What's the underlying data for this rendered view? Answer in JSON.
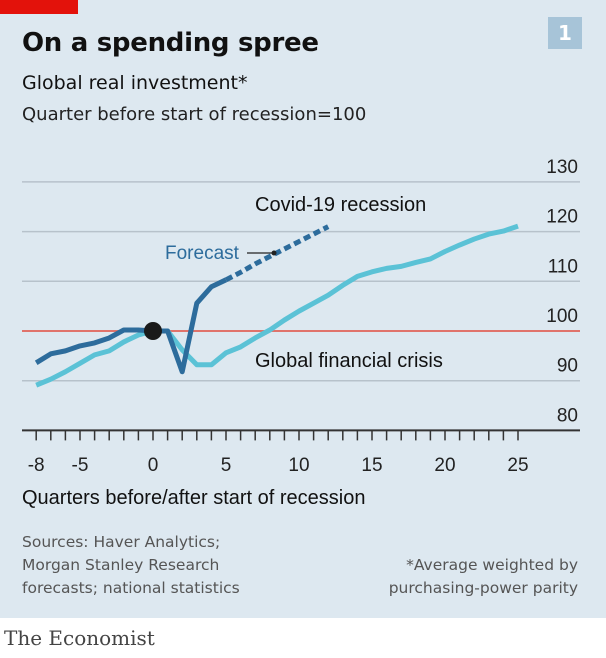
{
  "header": {
    "title": "On a spending spree",
    "subtitle": "Global real investment*",
    "subtitle2": "Quarter before start of recession=100",
    "chart_number": "1"
  },
  "footer": {
    "sources_lines": [
      "Sources: Haver Analytics;",
      "Morgan Stanley Research",
      "forecasts; national statistics"
    ],
    "note_lines": [
      "*Average weighted by",
      "purchasing-power parity"
    ],
    "brand": "The Economist"
  },
  "colors": {
    "background": "#dde8f0",
    "accent_red": "#e3120b",
    "covid": "#2d6c9c",
    "gfc": "#5bc2d6",
    "reference_line": "#e0736b"
  },
  "chart_data": {
    "type": "line",
    "xlabel": "Quarters before/after start of recession",
    "ylabel": "",
    "xlim": [
      -8,
      25
    ],
    "ylim": [
      80,
      130
    ],
    "x_ticks": [
      -8,
      -5,
      0,
      5,
      10,
      15,
      20,
      25
    ],
    "y_ticks": [
      80,
      90,
      100,
      110,
      120,
      130
    ],
    "y_axis_side": "right",
    "grid": true,
    "reference_line": 100,
    "marker_point": {
      "x": 0,
      "y": 100
    },
    "annotations": {
      "covid": "Covid-19 recession",
      "forecast": "Forecast",
      "gfc": "Global financial crisis"
    },
    "series": [
      {
        "name": "Covid-19 recession",
        "x": [
          -8,
          -7,
          -6,
          -5,
          -4,
          -3,
          -2,
          -1,
          0,
          1,
          2,
          3,
          4,
          5
        ],
        "values": [
          93.6,
          95.4,
          96,
          97,
          97.6,
          98.6,
          100.2,
          100.2,
          100,
          100,
          91.8,
          105.6,
          108.9,
          110.3
        ]
      },
      {
        "name": "Forecast",
        "x": [
          5,
          6,
          7,
          8,
          9,
          10,
          11,
          12
        ],
        "values": [
          110.3,
          111.8,
          113.5,
          115,
          116.5,
          118,
          119.5,
          121
        ]
      },
      {
        "name": "Global financial crisis",
        "x": [
          -8,
          -7,
          -6,
          -5,
          -4,
          -3,
          -2,
          -1,
          0,
          1,
          2,
          3,
          4,
          5,
          6,
          7,
          8,
          9,
          10,
          11,
          12,
          13,
          14,
          15,
          16,
          17,
          18,
          19,
          20,
          21,
          22,
          23,
          24,
          25
        ],
        "values": [
          89.1,
          90.3,
          91.8,
          93.5,
          95.2,
          96,
          97.8,
          99.2,
          100,
          100,
          96.2,
          93.2,
          93.2,
          95.6,
          96.8,
          98.6,
          100.2,
          102.2,
          104,
          105.6,
          107.2,
          109.2,
          111,
          111.9,
          112.6,
          113,
          113.8,
          114.5,
          116,
          117.3,
          118.5,
          119.5,
          120.1,
          121.1
        ]
      }
    ]
  }
}
